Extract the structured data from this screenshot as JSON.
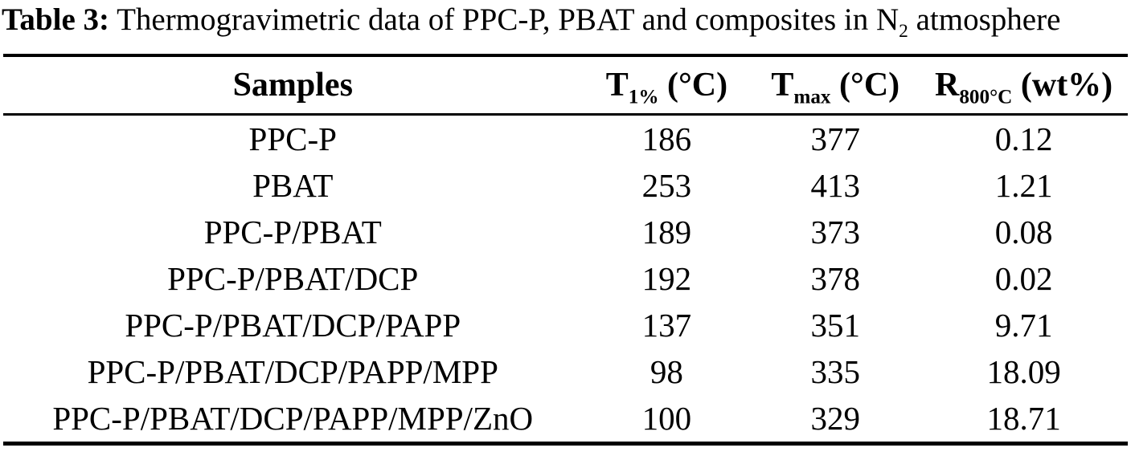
{
  "title": {
    "label": "Table 3:",
    "body": "Thermogravimetric data of PPC-P, PBAT and composites in N",
    "subscript": "2",
    "tail": "atmosphere"
  },
  "table": {
    "columns": [
      {
        "key": "sample",
        "label": "Samples",
        "sub": "",
        "unit": ""
      },
      {
        "key": "t1",
        "label": "T",
        "sub": "1%",
        "unit": "(°C)"
      },
      {
        "key": "tmax",
        "label": "T",
        "sub": "max",
        "unit": "(°C)"
      },
      {
        "key": "r800",
        "label": "R",
        "sub": "800°C",
        "unit": "(wt%)"
      }
    ],
    "rows": [
      {
        "sample": "PPC-P",
        "t1": "186",
        "tmax": "377",
        "r800": "0.12"
      },
      {
        "sample": "PBAT",
        "t1": "253",
        "tmax": "413",
        "r800": "1.21"
      },
      {
        "sample": "PPC-P/PBAT",
        "t1": "189",
        "tmax": "373",
        "r800": "0.08"
      },
      {
        "sample": "PPC-P/PBAT/DCP",
        "t1": "192",
        "tmax": "378",
        "r800": "0.02"
      },
      {
        "sample": "PPC-P/PBAT/DCP/PAPP",
        "t1": "137",
        "tmax": "351",
        "r800": "9.71"
      },
      {
        "sample": "PPC-P/PBAT/DCP/PAPP/MPP",
        "t1": "98",
        "tmax": "335",
        "r800": "18.09"
      },
      {
        "sample": "PPC-P/PBAT/DCP/PAPP/MPP/ZnO",
        "t1": "100",
        "tmax": "329",
        "r800": "18.71"
      }
    ]
  },
  "chart_data": {
    "type": "table",
    "title": "Table 3: Thermogravimetric data of PPC-P, PBAT and composites in N2 atmosphere",
    "columns": [
      "Samples",
      "T1% (°C)",
      "Tmax (°C)",
      "R800°C (wt%)"
    ],
    "rows": [
      [
        "PPC-P",
        186,
        377,
        0.12
      ],
      [
        "PBAT",
        253,
        413,
        1.21
      ],
      [
        "PPC-P/PBAT",
        189,
        373,
        0.08
      ],
      [
        "PPC-P/PBAT/DCP",
        192,
        378,
        0.02
      ],
      [
        "PPC-P/PBAT/DCP/PAPP",
        137,
        351,
        9.71
      ],
      [
        "PPC-P/PBAT/DCP/PAPP/MPP",
        98,
        335,
        18.09
      ],
      [
        "PPC-P/PBAT/DCP/PAPP/MPP/ZnO",
        100,
        329,
        18.71
      ]
    ]
  }
}
